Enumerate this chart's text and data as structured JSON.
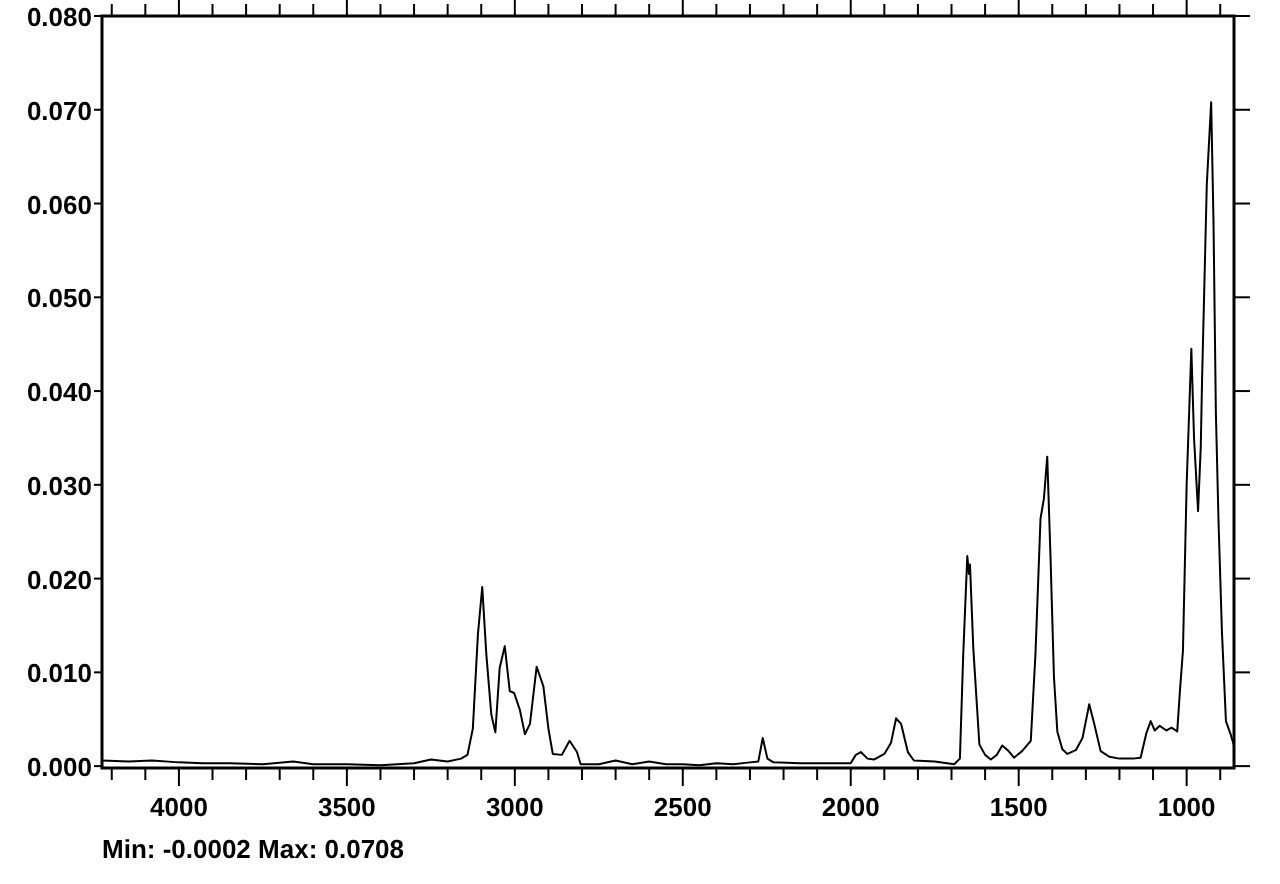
{
  "chart_data": {
    "type": "line",
    "x": [
      4229,
      4150,
      4080,
      4000,
      3930,
      3850,
      3750,
      3660,
      3600,
      3500,
      3400,
      3300,
      3250,
      3200,
      3160,
      3141,
      3125,
      3110,
      3097,
      3085,
      3070,
      3058,
      3045,
      3030,
      3015,
      3002,
      2985,
      2970,
      2955,
      2935,
      2915,
      2900,
      2887,
      2860,
      2837,
      2815,
      2804,
      2750,
      2700,
      2650,
      2600,
      2550,
      2500,
      2450,
      2400,
      2350,
      2300,
      2275,
      2262,
      2248,
      2230,
      2150,
      2050,
      2000,
      1985,
      1970,
      1950,
      1931,
      1900,
      1880,
      1865,
      1850,
      1830,
      1812,
      1750,
      1692,
      1675,
      1665,
      1653,
      1648,
      1645,
      1635,
      1617,
      1600,
      1583,
      1565,
      1549,
      1530,
      1514,
      1490,
      1464,
      1450,
      1435,
      1425,
      1415,
      1405,
      1395,
      1385,
      1370,
      1355,
      1330,
      1310,
      1290,
      1275,
      1256,
      1230,
      1200,
      1160,
      1137,
      1120,
      1107,
      1095,
      1080,
      1060,
      1045,
      1028,
      1020,
      1011,
      1000,
      986,
      978,
      966,
      958,
      954,
      940,
      927,
      920,
      913,
      905,
      895,
      883,
      870,
      860
    ],
    "series": [
      {
        "color": "#000000",
        "values": [
          0.0006,
          0.0005,
          0.0006,
          0.0004,
          0.0003,
          0.0003,
          0.0002,
          0.0005,
          0.0002,
          0.0002,
          0.0001,
          0.0003,
          0.0007,
          0.0005,
          0.0008,
          0.0012,
          0.004,
          0.014,
          0.0191,
          0.012,
          0.0055,
          0.0036,
          0.0105,
          0.0128,
          0.008,
          0.0078,
          0.006,
          0.0034,
          0.0045,
          0.0106,
          0.0085,
          0.004,
          0.0013,
          0.0012,
          0.0027,
          0.0015,
          0.0002,
          0.0002,
          0.0006,
          0.0002,
          0.0005,
          0.0002,
          0.0002,
          0.0001,
          0.0003,
          0.0002,
          0.0004,
          0.0005,
          0.003,
          0.0008,
          0.0004,
          0.0003,
          0.0003,
          0.0003,
          0.0012,
          0.0015,
          0.0008,
          0.0007,
          0.0013,
          0.0025,
          0.0051,
          0.0045,
          0.0015,
          0.0006,
          0.0005,
          0.0002,
          0.0008,
          0.012,
          0.0224,
          0.0205,
          0.0215,
          0.0125,
          0.0023,
          0.0012,
          0.0007,
          0.0012,
          0.0022,
          0.0016,
          0.0009,
          0.0016,
          0.0027,
          0.012,
          0.0264,
          0.0285,
          0.033,
          0.022,
          0.0095,
          0.0037,
          0.0018,
          0.0013,
          0.0017,
          0.003,
          0.0066,
          0.0045,
          0.0016,
          0.001,
          0.0008,
          0.0008,
          0.0009,
          0.0035,
          0.0048,
          0.0038,
          0.0043,
          0.0038,
          0.0041,
          0.0037,
          0.008,
          0.0123,
          0.03,
          0.0445,
          0.035,
          0.0272,
          0.034,
          0.0413,
          0.062,
          0.0708,
          0.058,
          0.0378,
          0.026,
          0.0144,
          0.0048,
          0.0035,
          0.0023
        ]
      }
    ],
    "xlim": [
      4229,
      859
    ],
    "ylim": [
      -0.0002,
      0.08
    ],
    "xticks": [
      {
        "value": 4200,
        "label": null
      },
      {
        "value": 4100,
        "label": null
      },
      4000,
      {
        "value": 3900,
        "label": null
      },
      {
        "value": 3800,
        "label": null
      },
      {
        "value": 3700,
        "label": null
      },
      {
        "value": 3600,
        "label": null
      },
      3500,
      {
        "value": 3400,
        "label": null
      },
      {
        "value": 3300,
        "label": null
      },
      {
        "value": 3200,
        "label": null
      },
      {
        "value": 3100,
        "label": null
      },
      3000,
      {
        "value": 2900,
        "label": null
      },
      {
        "value": 2800,
        "label": null
      },
      {
        "value": 2700,
        "label": null
      },
      {
        "value": 2600,
        "label": null
      },
      2500,
      {
        "value": 2400,
        "label": null
      },
      {
        "value": 2300,
        "label": null
      },
      {
        "value": 2200,
        "label": null
      },
      {
        "value": 2100,
        "label": null
      },
      2000,
      {
        "value": 1900,
        "label": null
      },
      {
        "value": 1800,
        "label": null
      },
      {
        "value": 1700,
        "label": null
      },
      {
        "value": 1600,
        "label": null
      },
      1500,
      {
        "value": 1400,
        "label": null
      },
      {
        "value": 1300,
        "label": null
      },
      {
        "value": 1200,
        "label": null
      },
      {
        "value": 1100,
        "label": null
      },
      1000,
      {
        "value": 900,
        "label": null
      }
    ],
    "yticks": [
      {
        "value": 0,
        "label": "0.000"
      },
      {
        "value": 0.01,
        "label": "0.010"
      },
      {
        "value": 0.02,
        "label": "0.020"
      },
      {
        "value": 0.03,
        "label": "0.030"
      },
      {
        "value": 0.04,
        "label": "0.040"
      },
      {
        "value": 0.05,
        "label": "0.050"
      },
      {
        "value": 0.06,
        "label": "0.060"
      },
      {
        "value": 0.07,
        "label": "0.070"
      },
      {
        "value": 0.08,
        "label": "0.080"
      }
    ],
    "annotations": [
      "Min: -0.0002 Max: 0.0708"
    ]
  }
}
